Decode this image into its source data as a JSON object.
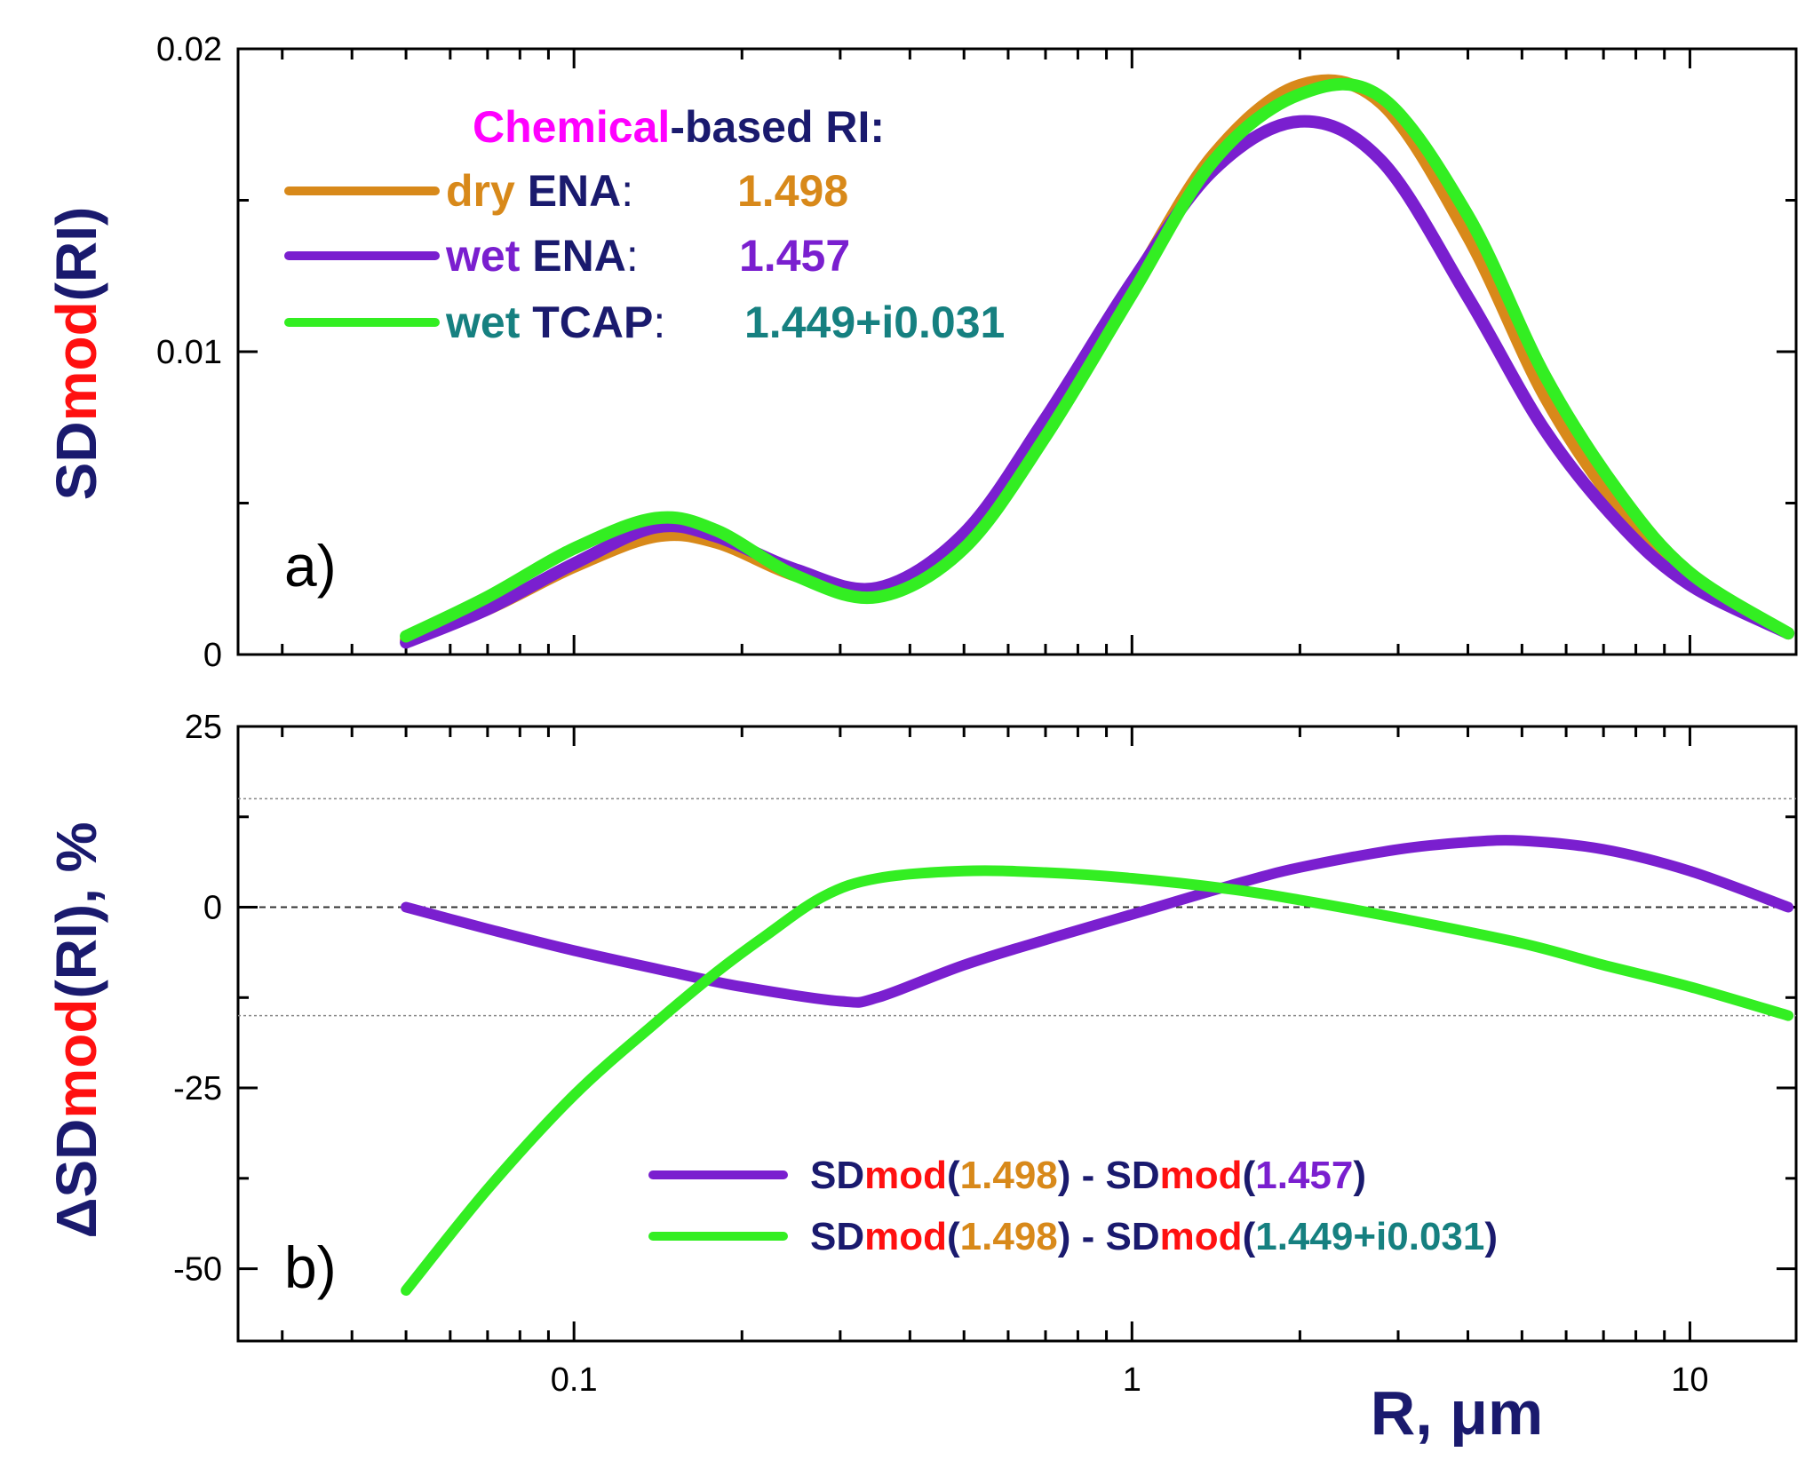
{
  "colors": {
    "navy": "#1a1a6e",
    "red": "#ff1010",
    "magenta": "#ff00ff",
    "orange": "#d8891a",
    "purple": "#7a1fcf",
    "green": "#33ee22",
    "teal": "#168080"
  },
  "chart_data": [
    {
      "panel": "a",
      "type": "line",
      "panel_label": "a)",
      "xscale": "log",
      "xlim": [
        0.025,
        15.5
      ],
      "ylim": [
        0,
        0.02
      ],
      "yticks": [
        "0",
        "0.01",
        "0.02"
      ],
      "yticks_values": [
        0,
        0.01,
        0.02
      ],
      "ylabel_parts": [
        "SD",
        "mod",
        "(RI)"
      ],
      "legend_title_parts": [
        "Chemical",
        "-based RI:"
      ],
      "legend": [
        {
          "name_parts": [
            "dry",
            " ENA",
            ":"
          ],
          "value": "1.498"
        },
        {
          "name_parts": [
            "wet",
            " ENA",
            ":"
          ],
          "value": "1.457"
        },
        {
          "name_parts": [
            "wet",
            " TCAP",
            ":"
          ],
          "value": "1.449+i0.031"
        }
      ],
      "x": [
        0.05,
        0.07,
        0.1,
        0.14,
        0.18,
        0.25,
        0.35,
        0.5,
        0.7,
        1,
        1.4,
        2,
        2.8,
        4,
        5.5,
        7.5,
        10,
        15
      ],
      "series": [
        {
          "name": "dry ENA: 1.498",
          "color": "#d8891a",
          "values": [
            0.0005,
            0.0015,
            0.0029,
            0.0039,
            0.0037,
            0.0026,
            0.002,
            0.0037,
            0.0075,
            0.0122,
            0.0165,
            0.0188,
            0.0182,
            0.0138,
            0.0085,
            0.0048,
            0.0025,
            0.0007
          ]
        },
        {
          "name": "wet ENA: 1.457",
          "color": "#7a1fcf",
          "values": [
            0.0004,
            0.0015,
            0.003,
            0.0042,
            0.0039,
            0.0028,
            0.0022,
            0.004,
            0.0078,
            0.0123,
            0.016,
            0.0176,
            0.0163,
            0.0118,
            0.0074,
            0.0043,
            0.0023,
            0.0007
          ]
        },
        {
          "name": "wet TCAP: 1.449+i0.031",
          "color": "#33ee22",
          "values": [
            0.0006,
            0.0019,
            0.0035,
            0.0045,
            0.0041,
            0.0026,
            0.0019,
            0.0035,
            0.0072,
            0.0119,
            0.0163,
            0.0185,
            0.0184,
            0.0145,
            0.0092,
            0.0053,
            0.0027,
            0.0007
          ]
        }
      ]
    },
    {
      "panel": "b",
      "type": "line",
      "panel_label": "b)",
      "xscale": "log",
      "xlim": [
        0.025,
        15.5
      ],
      "ylim": [
        -60,
        25
      ],
      "yticks": [
        "25",
        "0",
        "-25",
        "-50"
      ],
      "yticks_values": [
        25,
        0,
        -25,
        -50
      ],
      "reference_lines": {
        "dashed": [
          0
        ],
        "dotted": [
          15,
          -15
        ]
      },
      "xticks": [
        "0.1",
        "1",
        "10"
      ],
      "xticks_values": [
        0.1,
        1,
        10
      ],
      "xlabel": "R, μm",
      "ylabel_parts": [
        "ΔSD",
        "mod",
        "(RI), %"
      ],
      "legend": [
        {
          "parts": [
            "SD",
            "mod",
            "(",
            "1.498",
            ") - SD",
            "mod",
            "(",
            "1.457",
            ")"
          ]
        },
        {
          "parts": [
            "SD",
            "mod",
            "(",
            "1.498",
            ") - SD",
            "mod",
            "(",
            "1.449+i0.031",
            ")"
          ]
        }
      ],
      "series": [
        {
          "name": "SDmod(1.498) - SDmod(1.457)",
          "color": "#7a1fcf",
          "x": [
            0.05,
            0.07,
            0.1,
            0.15,
            0.2,
            0.3,
            0.35,
            0.5,
            0.7,
            1,
            1.5,
            2,
            3,
            4,
            5,
            7,
            10,
            15
          ],
          "values": [
            0,
            -3,
            -6,
            -9,
            -11,
            -13,
            -12.5,
            -8,
            -4.5,
            -1,
            3,
            5.5,
            8,
            9,
            9.2,
            8,
            5,
            0
          ]
        },
        {
          "name": "SDmod(1.498) - SDmod(1.449+i0.031)",
          "color": "#33ee22",
          "x": [
            0.05,
            0.07,
            0.1,
            0.14,
            0.18,
            0.22,
            0.28,
            0.35,
            0.5,
            0.7,
            1,
            1.5,
            2,
            3,
            5,
            7,
            10,
            15
          ],
          "values": [
            -53,
            -39,
            -26,
            -16,
            -9,
            -4,
            1.5,
            4,
            5,
            4.8,
            4,
            2.5,
            1,
            -1.5,
            -5,
            -8,
            -11,
            -15
          ]
        }
      ]
    }
  ]
}
